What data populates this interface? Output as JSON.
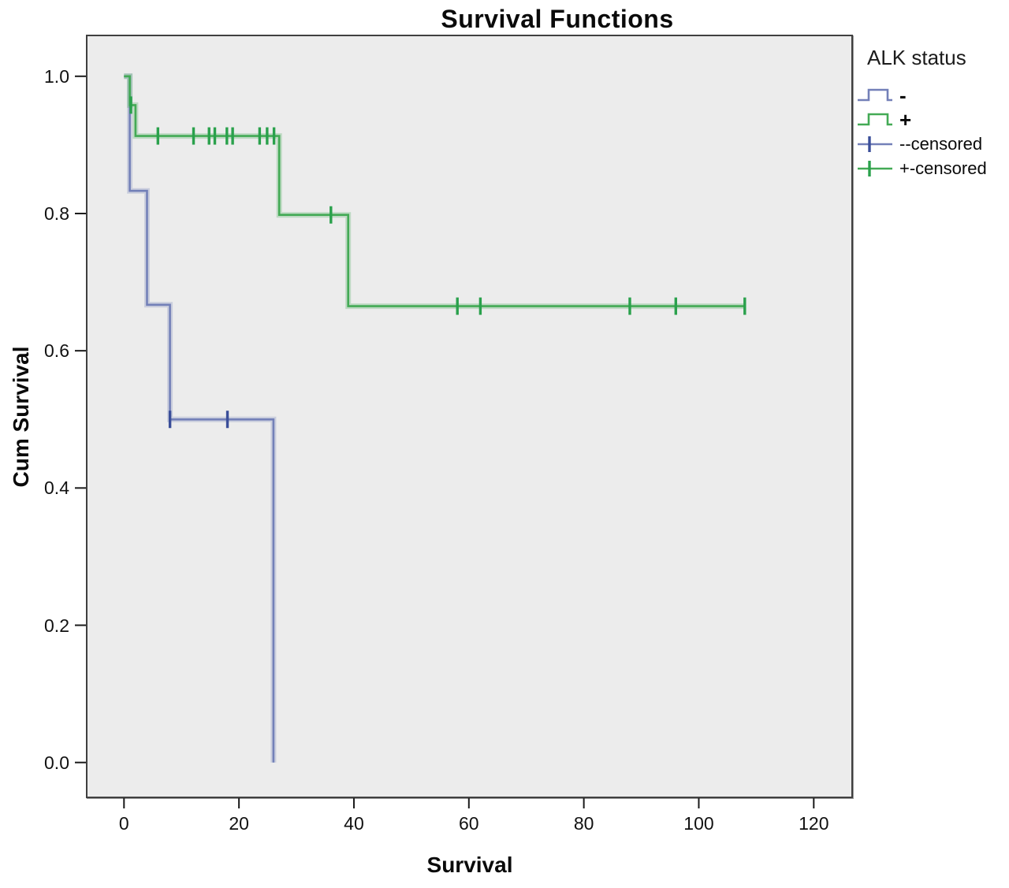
{
  "title": "Survival Functions",
  "axes": {
    "x": {
      "label": "Survival",
      "tick_labels": [
        "0",
        "20",
        "40",
        "60",
        "80",
        "100",
        "120"
      ],
      "tick_values": [
        0,
        20,
        40,
        60,
        80,
        100,
        120
      ],
      "range": [
        -6.6,
        126.8
      ]
    },
    "y": {
      "label": "Cum Survival",
      "tick_labels": [
        "1.0",
        "0.8",
        "0.6",
        "0.4",
        "0.2",
        "0.0"
      ],
      "tick_values": [
        1.0,
        0.8,
        0.6,
        0.4,
        0.2,
        0.0
      ],
      "range": [
        -0.052,
        1.061
      ]
    }
  },
  "legend": {
    "title": "ALK status",
    "entries": [
      {
        "label": "-",
        "glyph": "step",
        "series": "alk-negative"
      },
      {
        "label": "+",
        "glyph": "step",
        "series": "alk-positive"
      },
      {
        "label": "--censored",
        "glyph": "censor",
        "series": "alk-negative"
      },
      {
        "label": "+-censored",
        "glyph": "censor",
        "series": "alk-positive"
      }
    ]
  },
  "colors": {
    "alk_negative_line": "#7380b8",
    "alk_negative_censor": "#3a4e99",
    "alk_positive_line": "#43aa55",
    "alk_positive_censor": "#2aa14c",
    "plot_background": "#ececec",
    "frame": "#3f3f3f"
  },
  "chart_data": {
    "type": "line",
    "subtype": "kaplan-meier-step",
    "title": "Survival Functions",
    "xlabel": "Survival",
    "ylabel": "Cum Survival",
    "xlim": [
      -6.6,
      126.8
    ],
    "ylim": [
      -0.052,
      1.061
    ],
    "grid": false,
    "legend_position": "right-outside",
    "series": [
      {
        "id": "alk-negative",
        "name": "-",
        "color": "#7380b8",
        "censor_color": "#3a4e99",
        "start_level": 1.0,
        "drops": [
          [
            1,
            0.833
          ],
          [
            4,
            0.667
          ],
          [
            8,
            0.5
          ],
          [
            26,
            0.0
          ]
        ],
        "end_time": 26,
        "censored": [
          [
            8,
            0.5
          ],
          [
            18,
            0.5
          ]
        ]
      },
      {
        "id": "alk-positive",
        "name": "+",
        "color": "#43aa55",
        "censor_color": "#2aa14c",
        "start_level": 1.0,
        "drops": [
          [
            1,
            0.958
          ],
          [
            2,
            0.913
          ],
          [
            27,
            0.798
          ],
          [
            39,
            0.665
          ]
        ],
        "end_time": 108,
        "censored": [
          [
            1.2,
            0.958
          ],
          [
            5.9,
            0.913
          ],
          [
            12.1,
            0.913
          ],
          [
            14.8,
            0.913
          ],
          [
            15.8,
            0.913
          ],
          [
            17.9,
            0.913
          ],
          [
            18.9,
            0.913
          ],
          [
            23.6,
            0.913
          ],
          [
            24.9,
            0.913
          ],
          [
            26.1,
            0.913
          ],
          [
            36,
            0.798
          ],
          [
            58,
            0.665
          ],
          [
            62,
            0.665
          ],
          [
            88,
            0.665
          ],
          [
            96,
            0.665
          ],
          [
            108,
            0.665
          ]
        ]
      }
    ]
  }
}
